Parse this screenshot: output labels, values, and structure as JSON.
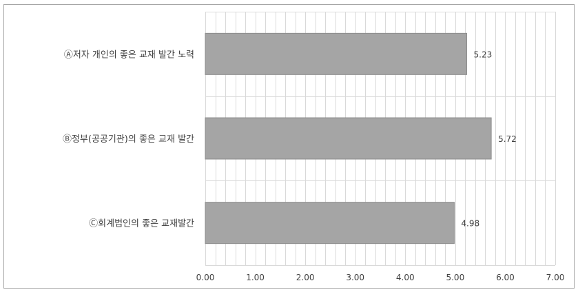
{
  "chart_data": {
    "type": "bar",
    "orientation": "horizontal",
    "categories": [
      "Ⓐ저자 개인의 좋은 교재 발간 노력",
      "Ⓑ정부(공공기관)의 좋은 교재 발간",
      "Ⓒ회계법인의 좋은 교재발간"
    ],
    "values": [
      5.23,
      5.72,
      4.98
    ],
    "data_labels": [
      "5.23",
      "5.72",
      "4.98"
    ],
    "xlim": [
      0,
      7
    ],
    "x_ticks": [
      "0.00",
      "1.00",
      "2.00",
      "3.00",
      "4.00",
      "5.00",
      "6.00",
      "7.00"
    ],
    "minor_step": 0.2,
    "grid": true,
    "legend": "none",
    "bar_color": "#a5a5a5",
    "bar_border_color": "#8c8c8c",
    "grid_color": "#d9d9d9"
  }
}
